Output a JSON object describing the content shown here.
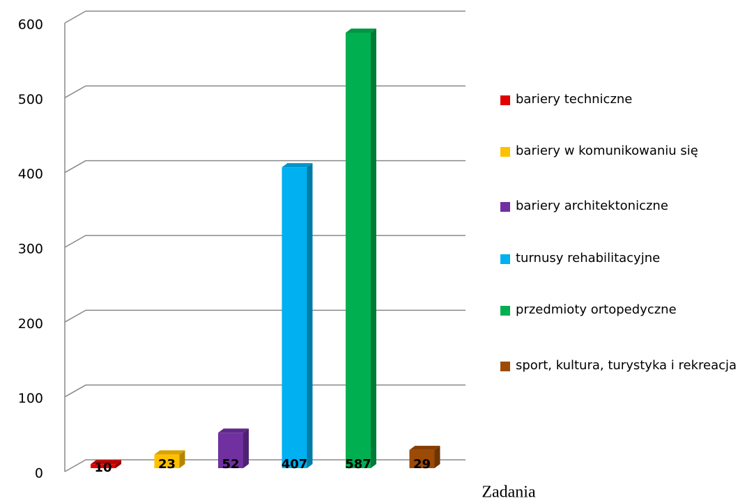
{
  "chart_data": {
    "type": "bar",
    "x_label": "Zadania",
    "categories": [
      null
    ],
    "series": [
      {
        "name": "bariery techniczne",
        "color": "#e00000",
        "values": [
          10
        ]
      },
      {
        "name": "bariery w komunikowaniu się",
        "color": "#ffc000",
        "values": [
          23
        ]
      },
      {
        "name": "bariery architektoniczne",
        "color": "#7030a0",
        "values": [
          52
        ]
      },
      {
        "name": "turnusy rehabilitacyjne",
        "color": "#00b0f0",
        "values": [
          407
        ]
      },
      {
        "name": "przedmioty ortopedyczne",
        "color": "#00b050",
        "values": [
          587
        ]
      },
      {
        "name": "sport, kultura, turystyka i rekreacja",
        "color": "#9c4a06",
        "values": [
          29
        ]
      }
    ],
    "ylim": [
      0,
      600
    ],
    "yticks": [
      0,
      100,
      200,
      300,
      400,
      500,
      600
    ],
    "grid": true,
    "legend": "right"
  }
}
